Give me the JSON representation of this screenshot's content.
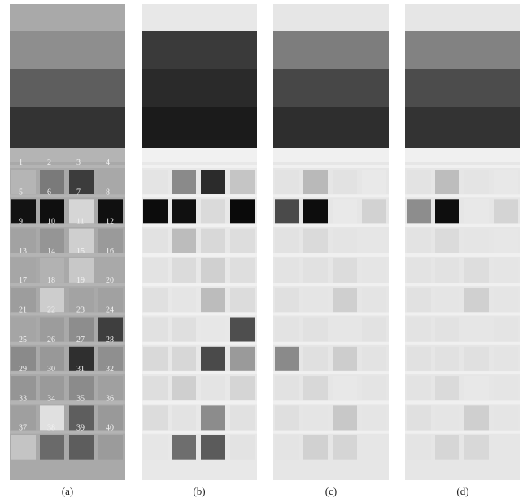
{
  "figure": {
    "panels": [
      {
        "id": "a",
        "caption": "(a)",
        "background": "#a9a9a9",
        "stripes": [
          "#8e8e8e",
          "#5e5e5e",
          "#333333"
        ],
        "show_numbers": true,
        "frame": "#b4b4b4",
        "sample_colors": [
          "#b5b5b5",
          "#7a7a7a",
          "#3c3c3c",
          "#a8a8a8",
          "#121212",
          "#0f0f0f",
          "#d6d6d6",
          "#101010",
          "#a2a2a2",
          "#959595",
          "#cfcfcf",
          "#9a9a9a",
          "#a6a6a6",
          "#b2b2b2",
          "#c8c8c8",
          "#a9a9a9",
          "#9d9d9d",
          "#cdcdcd",
          "#a3a3a3",
          "#a1a1a1",
          "#a5a5a5",
          "#9c9c9c",
          "#8d8d8d",
          "#3e3e3e",
          "#8a8a8a",
          "#989898",
          "#2f2f2f",
          "#8f8f8f",
          "#959595",
          "#9a9a9a",
          "#8b8b8b",
          "#a0a0a0",
          "#9f9f9f",
          "#e0e0e0",
          "#5e5e5e",
          "#999999",
          "#c4c4c4",
          "#6a6a6a",
          "#5d5d5d",
          "#9b9b9b"
        ]
      },
      {
        "id": "b",
        "caption": "(b)",
        "background": "#e8e8e8",
        "stripes": [
          "#3a3a3a",
          "#2a2a2a",
          "#1b1b1b"
        ],
        "show_numbers": false,
        "frame": "#f1f1f1",
        "sample_colors": [
          "#e4e4e4",
          "#8a8a8a",
          "#2b2b2b",
          "#c5c5c5",
          "#0c0c0c",
          "#101010",
          "#dadada",
          "#0a0a0a",
          "#e2e2e2",
          "#bcbcbc",
          "#d8d8d8",
          "#dddddd",
          "#e3e3e3",
          "#dbdbdb",
          "#d0d0d0",
          "#dedede",
          "#e0e0e0",
          "#e5e5e5",
          "#bcbcbc",
          "#dcdcdc",
          "#e1e1e1",
          "#dfdfdf",
          "#e7e7e7",
          "#4e4e4e",
          "#d9d9d9",
          "#d7d7d7",
          "#4a4a4a",
          "#9a9a9a",
          "#dedede",
          "#cfcfcf",
          "#e4e4e4",
          "#d5d5d5",
          "#dcdcdc",
          "#e3e3e3",
          "#8c8c8c",
          "#e1e1e1",
          "#e6e6e6",
          "#6e6e6e",
          "#5b5b5b",
          "#e3e3e3"
        ]
      },
      {
        "id": "c",
        "caption": "(c)",
        "background": "#e6e6e6",
        "stripes": [
          "#7d7d7d",
          "#474747",
          "#2e2e2e"
        ],
        "show_numbers": false,
        "frame": "#f0f0f0",
        "sample_colors": [
          "#e3e3e3",
          "#b9b9b9",
          "#e2e2e2",
          "#e9e9e9",
          "#4a4a4a",
          "#0d0d0d",
          "#e9e9e9",
          "#d2d2d2",
          "#e2e2e2",
          "#dadada",
          "#e4e4e4",
          "#e6e6e6",
          "#e3e3e3",
          "#e1e1e1",
          "#dcdcdc",
          "#e5e5e5",
          "#e0e0e0",
          "#e5e5e5",
          "#cfcfcf",
          "#e4e4e4",
          "#e3e3e3",
          "#e1e1e1",
          "#e6e6e6",
          "#e2e2e2",
          "#8a8a8a",
          "#e0e0e0",
          "#cdcdcd",
          "#e3e3e3",
          "#e2e2e2",
          "#d8d8d8",
          "#e8e8e8",
          "#e4e4e4",
          "#dfdfdf",
          "#e5e5e5",
          "#c8c8c8",
          "#e5e5e5",
          "#e4e4e4",
          "#d1d1d1",
          "#d5d5d5",
          "#e6e6e6"
        ]
      },
      {
        "id": "d",
        "caption": "(d)",
        "background": "#e6e6e6",
        "stripes": [
          "#828282",
          "#4c4c4c",
          "#333333"
        ],
        "show_numbers": false,
        "frame": "#f0f0f0",
        "sample_colors": [
          "#e3e3e3",
          "#bdbdbd",
          "#e4e4e4",
          "#e8e8e8",
          "#8d8d8d",
          "#0e0e0e",
          "#e8e8e8",
          "#d4d4d4",
          "#e3e3e3",
          "#dbdbdb",
          "#e5e5e5",
          "#e7e7e7",
          "#e3e3e3",
          "#e2e2e2",
          "#dddddd",
          "#e5e5e5",
          "#e1e1e1",
          "#e5e5e5",
          "#d0d0d0",
          "#e5e5e5",
          "#e3e3e3",
          "#e2e2e2",
          "#e6e6e6",
          "#e4e4e4",
          "#e1e1e1",
          "#e1e1e1",
          "#e0e0e0",
          "#e4e4e4",
          "#e3e3e3",
          "#dadada",
          "#e8e8e8",
          "#e5e5e5",
          "#e0e0e0",
          "#e5e5e5",
          "#cfcfcf",
          "#e5e5e5",
          "#e4e4e4",
          "#d6d6d6",
          "#d8d8d8",
          "#e6e6e6"
        ]
      }
    ],
    "sample_numbers": [
      "1",
      "2",
      "3",
      "4",
      "5",
      "6",
      "7",
      "8",
      "9",
      "10",
      "11",
      "12",
      "13",
      "14",
      "15",
      "16",
      "17",
      "18",
      "19",
      "20",
      "21",
      "22",
      "23",
      "24",
      "25",
      "26",
      "27",
      "28",
      "29",
      "30",
      "31",
      "32",
      "33",
      "34",
      "35",
      "36",
      "37",
      "38",
      "39",
      "40"
    ]
  }
}
